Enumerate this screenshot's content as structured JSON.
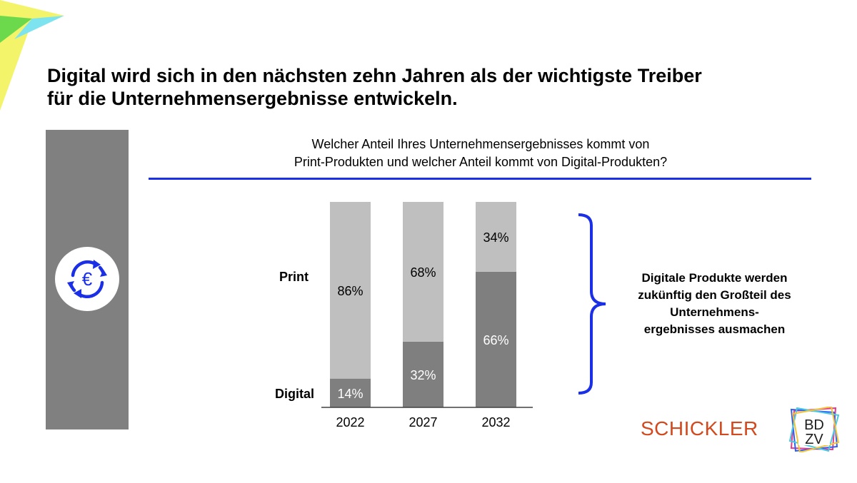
{
  "header": {
    "title_line1": "Digital wird sich in den nächsten zehn Jahren als der wichtigste Treiber",
    "title_line2": "für die Unternehmensergebnisse entwickeln."
  },
  "question": {
    "line1": "Welcher Anteil Ihres Unternehmensergebnisses kommt von",
    "line2": "Print-Produkten und welcher Anteil kommt von Digital-Produkten?"
  },
  "takeaway": {
    "line1": "Digitale Produkte werden",
    "line2": "zukünftig den Großteil des",
    "line3": "Unternehmens-",
    "line4": "ergebnisses ausmachen"
  },
  "branding": {
    "company": "SCHICKLER",
    "logo_text": "BDZV",
    "logo_row1": "BD",
    "logo_row2": "ZV"
  },
  "icons": {
    "sidebar_icon": "euro-cycle-icon",
    "brace": "curly-brace-icon"
  },
  "colors": {
    "accent_blue": "#1a2fe6",
    "print": "#bfbfbf",
    "digital": "#7f7f7f",
    "sidebar": "#808080",
    "schickler": "#d2491e"
  },
  "chart_data": {
    "type": "bar",
    "stacked": true,
    "percent": true,
    "title": "Welcher Anteil Ihres Unternehmensergebnisses kommt von Print-Produkten und welcher Anteil kommt von Digital-Produkten?",
    "categories": [
      "2022",
      "2027",
      "2032"
    ],
    "series": [
      {
        "name": "Digital",
        "values": [
          14,
          32,
          66
        ],
        "labels": [
          "14%",
          "32%",
          "66%"
        ]
      },
      {
        "name": "Print",
        "values": [
          86,
          68,
          34
        ],
        "labels": [
          "86%",
          "68%",
          "34%"
        ]
      }
    ],
    "ylim": [
      0,
      100
    ],
    "grid": false,
    "legend": "left"
  }
}
